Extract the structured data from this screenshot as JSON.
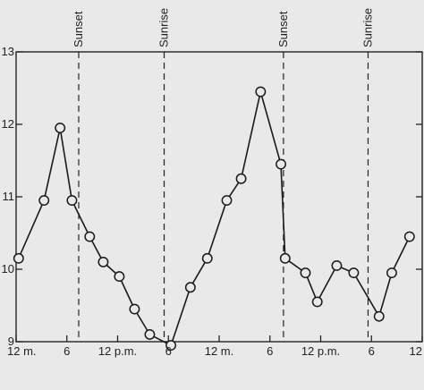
{
  "chart_data": {
    "type": "line",
    "title": "",
    "xlabel": "",
    "ylabel": "",
    "ylim": [
      9,
      13
    ],
    "xlim": [
      0,
      48
    ],
    "yticks": [
      9,
      10,
      11,
      12,
      13
    ],
    "ytick_labels": [
      "9",
      "10",
      "11",
      "12",
      "13"
    ],
    "xticks": [
      {
        "x": 0,
        "label": "12 m."
      },
      {
        "x": 6,
        "label": "6"
      },
      {
        "x": 12,
        "label": "12 p.m."
      },
      {
        "x": 18,
        "label": "6"
      },
      {
        "x": 24,
        "label": "12 m."
      },
      {
        "x": 30,
        "label": "6"
      },
      {
        "x": 36,
        "label": "12 p.m."
      },
      {
        "x": 42,
        "label": "6"
      },
      {
        "x": 48,
        "label": "12"
      }
    ],
    "events": [
      {
        "x": 7.4,
        "label": "Sunset"
      },
      {
        "x": 17.5,
        "label": "Sunrise"
      },
      {
        "x": 31.6,
        "label": "Sunset"
      },
      {
        "x": 41.6,
        "label": "Sunrise"
      }
    ],
    "grid": false,
    "series": [
      {
        "points": [
          {
            "x": 0.3,
            "y": 10.15
          },
          {
            "x": 3.3,
            "y": 10.95
          },
          {
            "x": 5.2,
            "y": 11.95
          },
          {
            "x": 6.6,
            "y": 10.95
          },
          {
            "x": 8.7,
            "y": 10.45
          },
          {
            "x": 10.3,
            "y": 10.1
          },
          {
            "x": 12.2,
            "y": 9.9
          },
          {
            "x": 14.0,
            "y": 9.45
          },
          {
            "x": 15.8,
            "y": 9.1
          },
          {
            "x": 18.3,
            "y": 8.95
          },
          {
            "x": 20.6,
            "y": 9.75
          },
          {
            "x": 22.6,
            "y": 10.15
          },
          {
            "x": 24.9,
            "y": 10.95
          },
          {
            "x": 26.6,
            "y": 11.25
          },
          {
            "x": 28.9,
            "y": 12.45
          },
          {
            "x": 31.3,
            "y": 11.45
          },
          {
            "x": 31.8,
            "y": 10.15
          },
          {
            "x": 34.2,
            "y": 9.95
          },
          {
            "x": 35.6,
            "y": 9.55
          },
          {
            "x": 37.9,
            "y": 10.05
          },
          {
            "x": 39.9,
            "y": 9.95
          },
          {
            "x": 42.9,
            "y": 9.35
          },
          {
            "x": 44.4,
            "y": 9.95
          },
          {
            "x": 46.5,
            "y": 10.45
          }
        ]
      }
    ]
  }
}
